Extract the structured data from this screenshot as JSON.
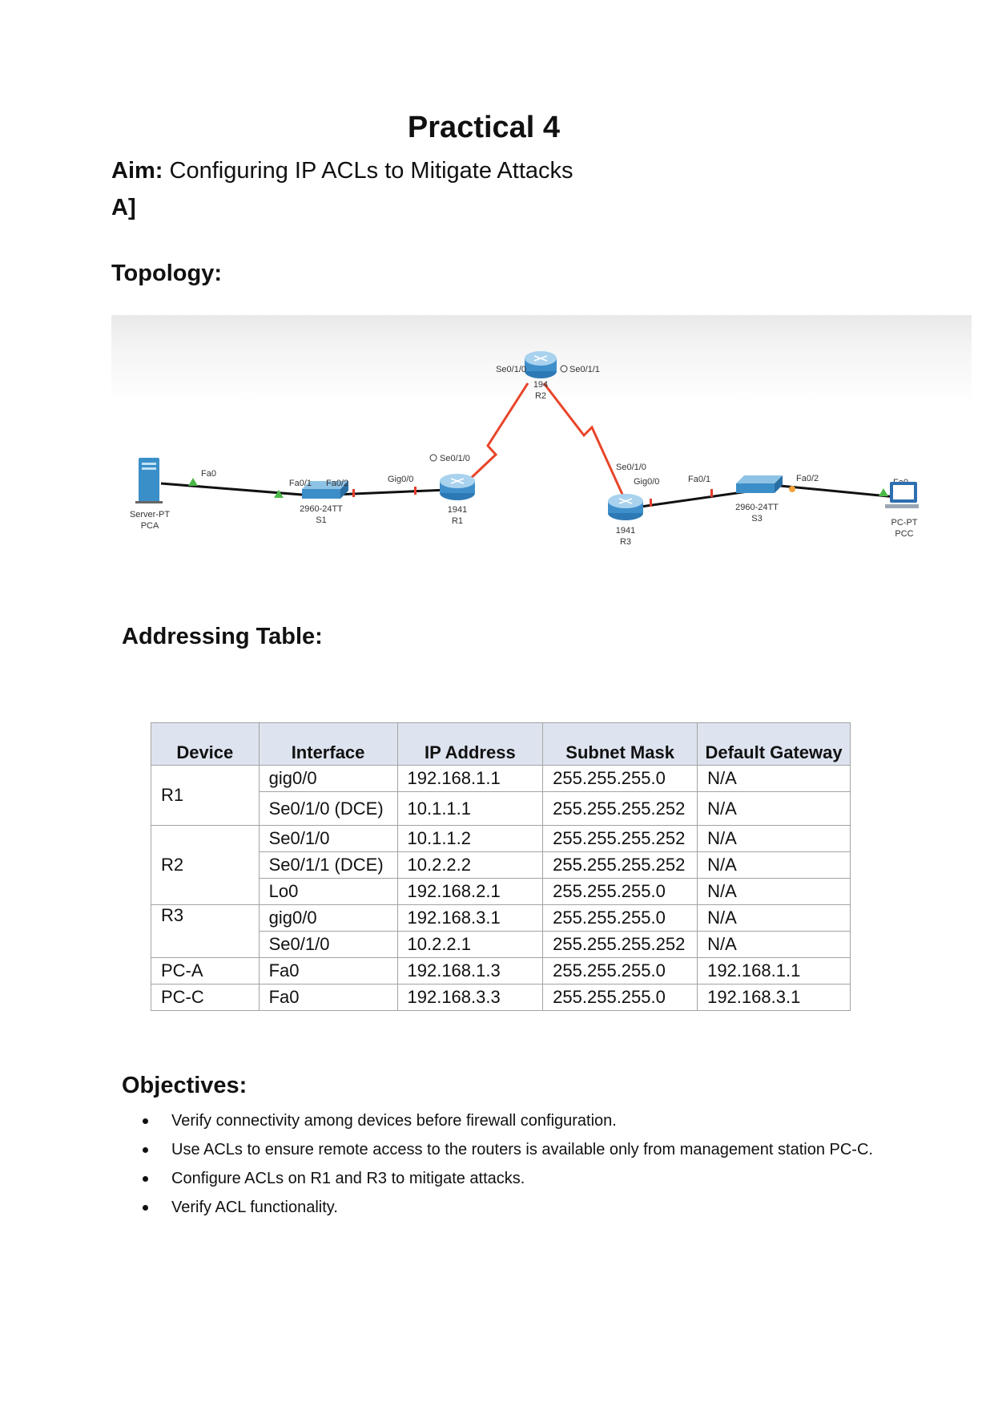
{
  "title": "Practical 4",
  "aim": {
    "label": "Aim:",
    "text": "Configuring IP ACLs to Mitigate Attacks"
  },
  "section_label": "A]",
  "topology": {
    "heading": "Topology:",
    "devices": {
      "pca": {
        "type": "Server-PT",
        "name": "PCA"
      },
      "s1": {
        "type": "2960-24TT",
        "name": "S1"
      },
      "r1": {
        "type": "1941",
        "name": "R1"
      },
      "r2": {
        "type": "194",
        "name": "R2"
      },
      "r3": {
        "type": "1941",
        "name": "R3"
      },
      "s3": {
        "type": "2960-24TT",
        "name": "S3"
      },
      "pcc": {
        "type": "PC-PT",
        "name": "PCC"
      }
    },
    "ports": {
      "pca_fa0": "Fa0",
      "s1_fa01": "Fa0/1",
      "s1_fa02": "Fa0/2",
      "r1_gig00": "Gig0/0",
      "r1_se010": "Se0/1/0",
      "r2_se010": "Se0/1/0",
      "r2_se011": "Se0/1/1",
      "r3_se010": "Se0/1/0",
      "r3_gig00": "Gig0/0",
      "s3_fa01": "Fa0/1",
      "s3_fa02": "Fa0/2",
      "pcc_fa0": "Fa0"
    }
  },
  "addressing": {
    "heading": "Addressing Table:",
    "headers": [
      "Device",
      "Interface",
      "IP Address",
      "Subnet Mask",
      "Default Gateway"
    ],
    "groups": [
      {
        "device": "R1",
        "rows": [
          [
            "gig0/0",
            "192.168.1.1",
            "255.255.255.0",
            "N/A"
          ],
          [
            "Se0/1/0 (DCE)",
            "10.1.1.1",
            "255.255.255.252",
            "N/A"
          ]
        ]
      },
      {
        "device": "R2",
        "rows": [
          [
            "Se0/1/0",
            "10.1.1.2",
            "255.255.255.252",
            "N/A"
          ],
          [
            "Se0/1/1 (DCE)",
            "10.2.2.2",
            "255.255.255.252",
            "N/A"
          ],
          [
            "Lo0",
            "192.168.2.1",
            "255.255.255.0",
            "N/A"
          ]
        ]
      },
      {
        "device": "R3",
        "rows": [
          [
            "gig0/0",
            "192.168.3.1",
            "255.255.255.0",
            "N/A"
          ],
          [
            "Se0/1/0",
            "10.2.2.1",
            "255.255.255.252",
            "N/A"
          ]
        ]
      },
      {
        "device": "PC-A",
        "rows": [
          [
            "Fa0",
            "192.168.1.3",
            "255.255.255.0",
            "192.168.1.1"
          ]
        ]
      },
      {
        "device": "PC-C",
        "rows": [
          [
            "Fa0",
            "192.168.3.3",
            "255.255.255.0",
            "192.168.3.1"
          ]
        ]
      }
    ]
  },
  "objectives": {
    "heading": "Objectives:",
    "items": [
      "Verify connectivity among devices before firewall configuration.",
      "Use ACLs to ensure remote access to the routers is available only from management station PC-C.",
      "Configure ACLs on R1 and R3 to mitigate attacks.",
      "Verify ACL functionality."
    ]
  }
}
